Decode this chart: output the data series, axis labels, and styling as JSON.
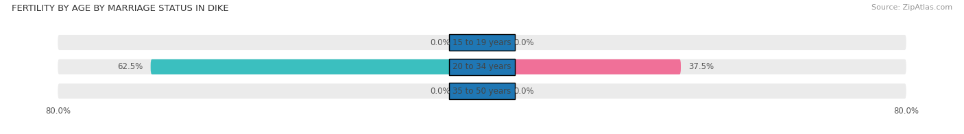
{
  "title": "FERTILITY BY AGE BY MARRIAGE STATUS IN DIKE",
  "source": "Source: ZipAtlas.com",
  "categories": [
    "15 to 19 years",
    "20 to 34 years",
    "35 to 50 years"
  ],
  "married_values": [
    0.0,
    62.5,
    0.0
  ],
  "unmarried_values": [
    0.0,
    37.5,
    0.0
  ],
  "married_color": "#3bbfbf",
  "married_light_color": "#a8dede",
  "unmarried_color": "#f07098",
  "unmarried_light_color": "#f5b8cc",
  "bar_bg_color": "#ebebeb",
  "small_bar_width": 5.0,
  "bar_height": 0.62,
  "xlim": 80.0,
  "title_fontsize": 9.5,
  "source_fontsize": 8,
  "label_fontsize": 8.5,
  "category_fontsize": 8.5,
  "legend_fontsize": 9,
  "axis_label_fontsize": 8.5
}
